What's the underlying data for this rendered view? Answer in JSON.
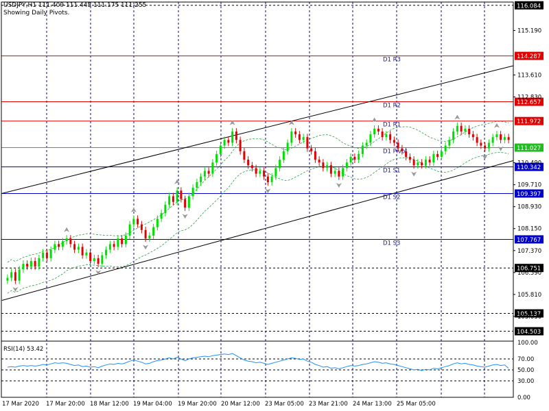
{
  "header": {
    "symbol_line": "USDJPY,H1  111.409 111.445 111.175 111.255",
    "subtitle": "Showing Daily Pivots."
  },
  "rsi_panel": {
    "label": "RSI(14) 53.42",
    "levels": [
      70,
      50,
      30
    ],
    "axis_labels": [
      "100.00",
      "70.00",
      "50.00",
      "30.00",
      "0.00"
    ],
    "axis_values": [
      100,
      70,
      50,
      30,
      0
    ]
  },
  "colors": {
    "bull": "#00e000",
    "bear": "#e00000",
    "resistance": "#e00000",
    "support": "#0000cc",
    "pivot": "#22bb22",
    "envelope": "#2a9d4a",
    "rsi": "#1e90ff",
    "grid": "#0000aa",
    "arrow": "#999999"
  },
  "chart_data": {
    "type": "candlestick",
    "symbol": "USDJPY",
    "timeframe": "H1",
    "ylim": [
      104.2,
      116.2
    ],
    "price_ticks": [
      "115.190",
      "113.610",
      "112.830",
      "110.490",
      "109.710",
      "108.930",
      "108.150",
      "107.370",
      "106.590",
      "105.810",
      "105.030"
    ],
    "price_tick_values": [
      115.19,
      113.61,
      112.83,
      110.49,
      109.71,
      108.93,
      108.15,
      107.37,
      106.59,
      105.81,
      105.03
    ],
    "x_labels": [
      "17 Mar 2020",
      "17 Mar 20:00",
      "18 Mar 12:00",
      "19 Mar 04:00",
      "19 Mar 20:00",
      "20 Mar 12:00",
      "23 Mar 05:00",
      "23 Mar 21:00",
      "24 Mar 13:00",
      "25 Mar 05:00"
    ],
    "pivot_levels": [
      {
        "name": "D1 R3",
        "value": 114.287,
        "label": "114.287",
        "kind": "resistance"
      },
      {
        "name": "D1 R2",
        "value": 112.657,
        "label": "112.657",
        "kind": "resistance"
      },
      {
        "name": "D1 R1",
        "value": 111.972,
        "label": "111.972",
        "kind": "resistance"
      },
      {
        "name": "D1 Pivot",
        "value": 111.027,
        "label": "111.027",
        "kind": "pivot"
      },
      {
        "name": "D1 S1",
        "value": 110.342,
        "label": "110.342",
        "kind": "support"
      },
      {
        "name": "D1 S2",
        "value": 109.397,
        "label": "109.397",
        "kind": "support"
      },
      {
        "name": "D1 S3",
        "value": 107.767,
        "label": "107.767",
        "kind": "support"
      }
    ],
    "dashed_levels": [
      {
        "value": 116.084,
        "label": "116.084"
      },
      {
        "value": 106.751,
        "label": "106.751"
      },
      {
        "value": 105.137,
        "label": "105.137"
      },
      {
        "value": 104.503,
        "label": "104.503"
      }
    ],
    "current_price": 111.255,
    "channel": {
      "upper": [
        [
          0,
          109.4
        ],
        [
          150,
          114.7
        ]
      ],
      "lower": [
        [
          0,
          105.6
        ],
        [
          150,
          111.4
        ]
      ]
    },
    "close": [
      106.4,
      106.6,
      106.3,
      106.7,
      106.9,
      106.8,
      107.0,
      106.8,
      107.1,
      107.3,
      107.1,
      107.4,
      107.6,
      107.5,
      107.7,
      107.8,
      107.6,
      107.4,
      107.5,
      107.2,
      107.3,
      107.0,
      107.1,
      106.9,
      107.2,
      107.4,
      107.6,
      107.5,
      107.8,
      107.6,
      107.9,
      108.3,
      108.5,
      108.3,
      108.1,
      107.8,
      107.9,
      108.2,
      108.5,
      108.7,
      109.0,
      109.3,
      109.1,
      109.5,
      109.2,
      108.9,
      109.3,
      109.6,
      109.8,
      110.0,
      110.2,
      110.1,
      110.5,
      110.8,
      111.1,
      111.3,
      111.2,
      111.6,
      111.3,
      110.9,
      110.6,
      110.4,
      110.3,
      110.1,
      110.2,
      110.0,
      109.8,
      110.0,
      110.3,
      110.6,
      110.9,
      111.2,
      111.6,
      111.5,
      111.3,
      111.4,
      111.0,
      110.9,
      110.6,
      110.5,
      110.3,
      110.4,
      110.1,
      110.2,
      110.0,
      110.3,
      110.5,
      110.7,
      110.6,
      110.8,
      111.1,
      111.2,
      111.5,
      111.7,
      111.6,
      111.4,
      111.5,
      111.3,
      111.2,
      111.0,
      110.9,
      110.7,
      110.6,
      110.4,
      110.5,
      110.4,
      110.6,
      110.5,
      110.8,
      110.7,
      110.9,
      111.1,
      111.3,
      111.6,
      111.8,
      111.6,
      111.7,
      111.5,
      111.4,
      111.2,
      111.1,
      111.0,
      111.2,
      111.4,
      111.5,
      111.3,
      111.4,
      111.3
    ],
    "rsi": [
      55,
      56,
      55,
      57,
      58,
      57,
      58,
      57,
      58,
      60,
      59,
      61,
      63,
      62,
      63,
      62,
      60,
      58,
      59,
      56,
      57,
      55,
      56,
      54,
      57,
      59,
      61,
      60,
      62,
      61,
      63,
      66,
      68,
      66,
      64,
      61,
      62,
      65,
      67,
      68,
      70,
      72,
      70,
      73,
      70,
      67,
      70,
      72,
      73,
      74,
      75,
      74,
      76,
      77,
      78,
      79,
      78,
      80,
      76,
      72,
      68,
      66,
      65,
      63,
      64,
      62,
      60,
      62,
      64,
      66,
      68,
      70,
      72,
      71,
      69,
      70,
      66,
      64,
      60,
      58,
      55,
      56,
      53,
      54,
      52,
      54,
      56,
      58,
      57,
      58,
      60,
      61,
      63,
      65,
      64,
      62,
      63,
      61,
      60,
      58,
      56,
      54,
      52,
      50,
      51,
      49,
      51,
      50,
      53,
      52,
      54,
      56,
      58,
      61,
      63,
      61,
      62,
      60,
      59,
      57,
      56,
      55,
      57,
      59,
      60,
      58,
      59,
      53
    ]
  }
}
